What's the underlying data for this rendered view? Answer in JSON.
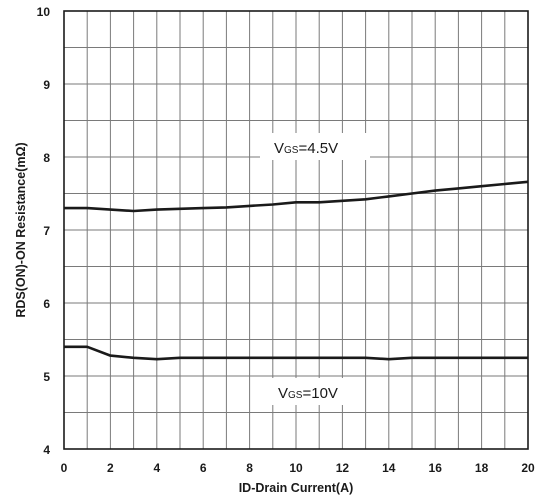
{
  "chart_data": {
    "type": "line",
    "xlabel": "ID-Drain Current(A)",
    "ylabel": "RDS(ON)-ON Resistance(mΩ)",
    "xlim": [
      0,
      20
    ],
    "ylim": [
      4,
      10
    ],
    "x_ticks": [
      "0",
      "2",
      "4",
      "6",
      "8",
      "10",
      "12",
      "14",
      "16",
      "18",
      "20"
    ],
    "y_ticks": [
      "4",
      "5",
      "6",
      "7",
      "8",
      "9",
      "10"
    ],
    "grid": true,
    "series": [
      {
        "label_main": "V",
        "label_sub": "GS",
        "label_rest": "=4.5V",
        "x": [
          0,
          1,
          2,
          3,
          4,
          5,
          6,
          7,
          8,
          9,
          10,
          11,
          12,
          13,
          14,
          15,
          16,
          17,
          18,
          19,
          20
        ],
        "y": [
          7.3,
          7.3,
          7.28,
          7.26,
          7.28,
          7.29,
          7.3,
          7.31,
          7.33,
          7.35,
          7.38,
          7.38,
          7.4,
          7.42,
          7.46,
          7.5,
          7.54,
          7.57,
          7.6,
          7.63,
          7.66
        ]
      },
      {
        "label_main": "V",
        "label_sub": "GS",
        "label_rest": "=10V",
        "x": [
          0,
          1,
          2,
          3,
          4,
          5,
          6,
          7,
          8,
          9,
          10,
          11,
          12,
          13,
          14,
          15,
          16,
          17,
          18,
          19,
          20
        ],
        "y": [
          5.4,
          5.4,
          5.28,
          5.25,
          5.23,
          5.25,
          5.25,
          5.25,
          5.25,
          5.25,
          5.25,
          5.25,
          5.25,
          5.25,
          5.23,
          5.25,
          5.25,
          5.25,
          5.25,
          5.25,
          5.25
        ]
      }
    ],
    "colors": {
      "line": "#1a1a1a",
      "grid": "#7a7a7a",
      "frame": "#1a1a1a",
      "label_box": "#ffffff"
    }
  }
}
